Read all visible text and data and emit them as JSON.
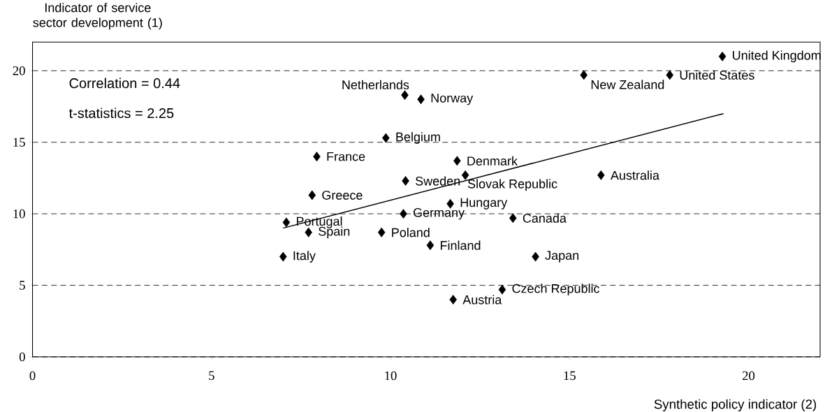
{
  "chart_data": {
    "type": "scatter",
    "xlabel": "Synthetic policy indicator (2)",
    "ylabel": "Indicator of service sector development (1)",
    "xlim": [
      0,
      22
    ],
    "ylim": [
      0,
      22
    ],
    "xticks": [
      0,
      5,
      10,
      15,
      20
    ],
    "yticks": [
      0,
      5,
      10,
      15,
      20
    ],
    "grid": "y",
    "series": [
      {
        "color": "#000000",
        "marker": "diamond",
        "x": [
          19.27,
          17.8,
          15.4,
          10.4,
          10.85,
          9.87,
          7.94,
          11.86,
          10.42,
          12.09,
          15.88,
          7.81,
          11.67,
          10.36,
          13.42,
          7.09,
          7.71,
          9.75,
          11.11,
          7.0,
          14.05,
          13.12,
          11.75
        ],
        "values": [
          21.0,
          19.7,
          19.7,
          18.3,
          18.0,
          15.3,
          14.0,
          13.7,
          12.3,
          12.7,
          12.7,
          11.3,
          10.7,
          10.0,
          9.7,
          9.4,
          8.7,
          8.7,
          7.8,
          7.0,
          7.0,
          4.7,
          4.0
        ]
      },
      {
        "type": "line",
        "color": "#000000",
        "marker": "none",
        "x": [
          7.0,
          19.3
        ],
        "values": [
          9.0,
          17.0
        ]
      }
    ],
    "annotations": [
      "Correlation = 0.44",
      "t-statistics = 2.25",
      {
        "text": "United Kingdom",
        "x": 19.27,
        "y": 21.0
      },
      {
        "text": "United States",
        "x": 17.8,
        "y": 19.7
      },
      {
        "text": "New Zealand",
        "x": 15.4,
        "y": 19.7
      },
      {
        "text": "Netherlands",
        "x": 10.4,
        "y": 18.3
      },
      {
        "text": "Norway",
        "x": 10.85,
        "y": 18.0
      },
      {
        "text": "Belgium",
        "x": 9.87,
        "y": 15.3
      },
      {
        "text": "France",
        "x": 7.94,
        "y": 14.0
      },
      {
        "text": "Denmark",
        "x": 11.86,
        "y": 13.7
      },
      {
        "text": "Sweden",
        "x": 10.42,
        "y": 12.3
      },
      {
        "text": "Slovak Republic",
        "x": 12.09,
        "y": 12.7
      },
      {
        "text": "Australia",
        "x": 15.88,
        "y": 12.7
      },
      {
        "text": "Greece",
        "x": 7.81,
        "y": 11.3
      },
      {
        "text": "Hungary",
        "x": 11.67,
        "y": 10.7
      },
      {
        "text": "Germany",
        "x": 10.36,
        "y": 10.0
      },
      {
        "text": "Canada",
        "x": 13.42,
        "y": 9.7
      },
      {
        "text": "Portugal",
        "x": 7.09,
        "y": 9.4
      },
      {
        "text": "Spain",
        "x": 7.71,
        "y": 8.7
      },
      {
        "text": "Poland",
        "x": 9.75,
        "y": 8.7
      },
      {
        "text": "Finland",
        "x": 11.11,
        "y": 7.8
      },
      {
        "text": "Italy",
        "x": 7.0,
        "y": 7.0
      },
      {
        "text": "Japan",
        "x": 14.05,
        "y": 7.0
      },
      {
        "text": "Czech Republic",
        "x": 13.12,
        "y": 4.7
      },
      {
        "text": "Austria",
        "x": 11.75,
        "y": 4.0
      }
    ]
  }
}
